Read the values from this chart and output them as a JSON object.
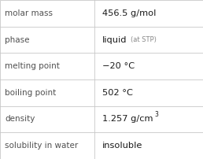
{
  "rows": [
    {
      "label": "molar mass",
      "value": "456.5 g/mol",
      "type": "plain"
    },
    {
      "label": "phase",
      "value": "liquid",
      "value_suffix": " (at STP)",
      "type": "phase"
    },
    {
      "label": "melting point",
      "value": "−20 °C",
      "type": "plain"
    },
    {
      "label": "boiling point",
      "value": "502 °C",
      "type": "plain"
    },
    {
      "label": "density",
      "value": "1.257 g/cm",
      "superscript": "3",
      "type": "super"
    },
    {
      "label": "solubility in water",
      "value": "insoluble",
      "type": "plain"
    }
  ],
  "bg_color": "#ffffff",
  "border_color": "#c8c8c8",
  "label_color": "#505050",
  "value_color": "#1a1a1a",
  "suffix_color": "#888888",
  "label_fontsize": 7.5,
  "value_fontsize": 8.2,
  "suffix_fontsize": 6.0,
  "super_fontsize": 5.5,
  "col_split": 0.465,
  "fig_w": 2.58,
  "fig_h": 2.02,
  "dpi": 100
}
